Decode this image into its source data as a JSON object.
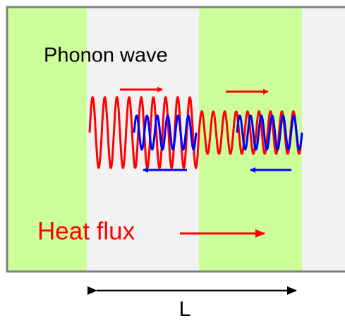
{
  "labels": {
    "wave": "Phonon wave",
    "flux": "Heat flux",
    "length": "L"
  }
}
